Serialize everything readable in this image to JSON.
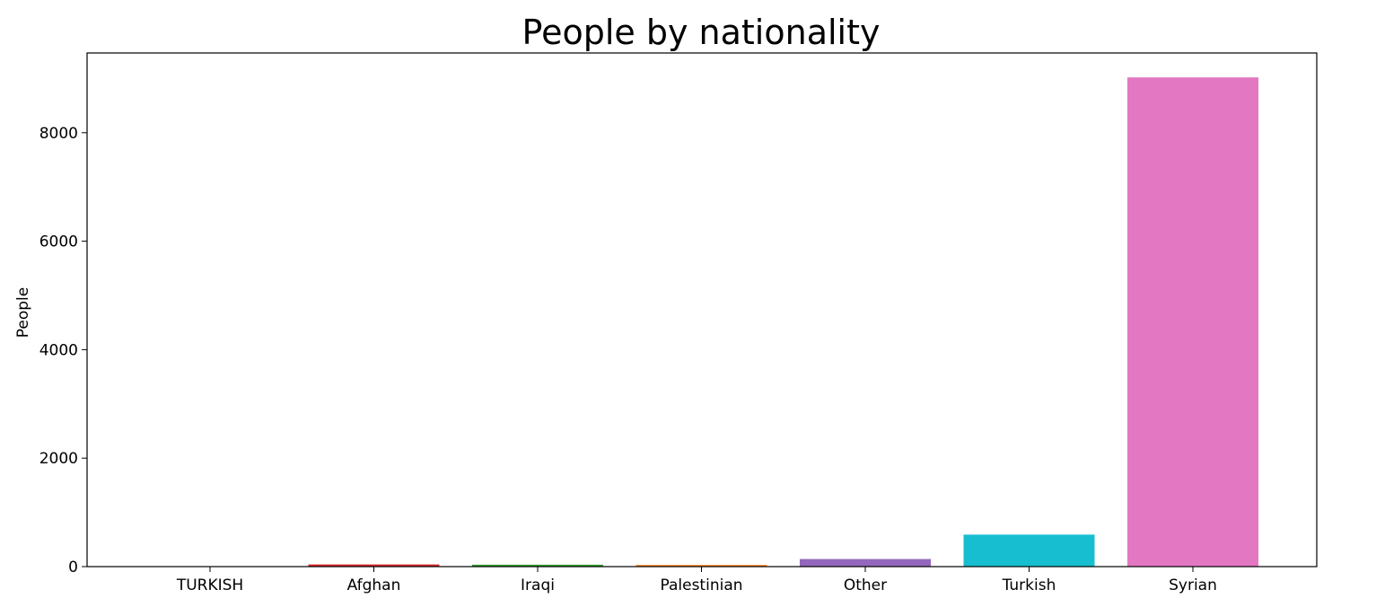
{
  "chart_data": {
    "type": "bar",
    "title": "People by nationality",
    "xlabel": "",
    "ylabel": "People",
    "categories": [
      "TURKISH",
      "Afghan",
      "Iraqi",
      "Palestinian",
      "Other",
      "Turkish",
      "Syrian"
    ],
    "values": [
      1,
      40,
      35,
      30,
      140,
      590,
      9020
    ],
    "colors": [
      "#1f77b4",
      "#d62728",
      "#2ca02c",
      "#ff7f0e",
      "#9467bd",
      "#17becf",
      "#e377c2"
    ],
    "ylim": [
      0,
      9470
    ],
    "yticks": [
      0,
      2000,
      4000,
      6000,
      8000
    ],
    "grid": false,
    "legend": "none"
  }
}
